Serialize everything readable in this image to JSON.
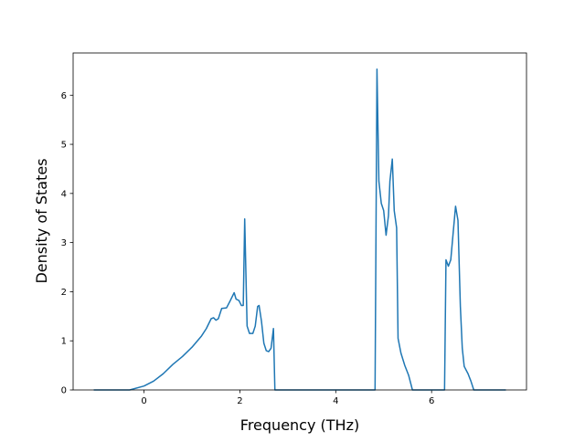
{
  "chart_data": {
    "type": "line",
    "xlabel": "Frequency (THz)",
    "ylabel": "Density of States",
    "x": [
      -1.05,
      -0.3,
      0,
      0.2,
      0.4,
      0.6,
      0.8,
      1.0,
      1.2,
      1.3,
      1.4,
      1.45,
      1.5,
      1.55,
      1.62,
      1.72,
      1.8,
      1.88,
      1.92,
      1.98,
      2.03,
      2.07,
      2.1,
      2.15,
      2.2,
      2.27,
      2.32,
      2.37,
      2.4,
      2.45,
      2.5,
      2.55,
      2.6,
      2.65,
      2.7,
      2.73,
      4.82,
      4.86,
      4.9,
      4.95,
      5.0,
      5.05,
      5.1,
      5.13,
      5.18,
      5.22,
      5.27,
      5.3,
      5.36,
      5.44,
      5.52,
      5.6,
      6.27,
      6.3,
      6.35,
      6.4,
      6.45,
      6.5,
      6.55,
      6.6,
      6.64,
      6.68,
      6.76,
      6.82,
      6.88,
      7.55
    ],
    "series": [
      {
        "color": "#1f77b4",
        "values": [
          0,
          0,
          0.08,
          0.18,
          0.33,
          0.52,
          0.68,
          0.87,
          1.1,
          1.25,
          1.45,
          1.47,
          1.42,
          1.45,
          1.66,
          1.67,
          1.82,
          1.98,
          1.85,
          1.82,
          1.72,
          1.72,
          3.48,
          1.3,
          1.15,
          1.15,
          1.3,
          1.7,
          1.72,
          1.4,
          0.95,
          0.8,
          0.78,
          0.85,
          1.25,
          0,
          0,
          6.53,
          4.25,
          3.8,
          3.65,
          3.15,
          3.55,
          4.25,
          4.7,
          3.65,
          3.3,
          1.05,
          0.75,
          0.5,
          0.3,
          0,
          0,
          2.65,
          2.52,
          2.65,
          3.2,
          3.74,
          3.45,
          1.7,
          0.85,
          0.48,
          0.33,
          0.18,
          0,
          0
        ]
      }
    ],
    "xlim": [
      -1.48,
      7.98
    ],
    "ylim": [
      0,
      6.86
    ],
    "xticks": [
      0,
      2,
      4,
      6
    ],
    "yticks": [
      0,
      1,
      2,
      3,
      4,
      5,
      6
    ]
  }
}
